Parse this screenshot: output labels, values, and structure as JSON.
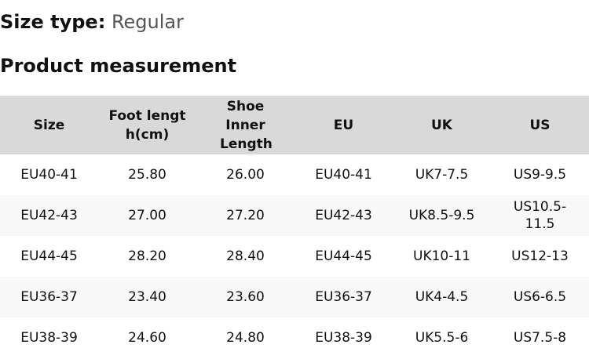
{
  "size_type": {
    "label": "Size type:",
    "value": "Regular"
  },
  "section_title": "Product measurement",
  "table": {
    "headers": [
      "Size",
      "Foot length(cm)",
      "Shoe Inner Length",
      "EU",
      "UK",
      "US"
    ],
    "rows": [
      [
        "EU40-41",
        "25.80",
        "26.00",
        "EU40-41",
        "UK7-7.5",
        "US9-9.5"
      ],
      [
        "EU42-43",
        "27.00",
        "27.20",
        "EU42-43",
        "UK8.5-9.5",
        "US10.5-11.5"
      ],
      [
        "EU44-45",
        "28.20",
        "28.40",
        "EU44-45",
        "UK10-11",
        "US12-13"
      ],
      [
        "EU36-37",
        "23.40",
        "23.60",
        "EU36-37",
        "UK4-4.5",
        "US6-6.5"
      ],
      [
        "EU38-39",
        "24.60",
        "24.80",
        "EU38-39",
        "UK5.5-6",
        "US7.5-8"
      ]
    ]
  }
}
